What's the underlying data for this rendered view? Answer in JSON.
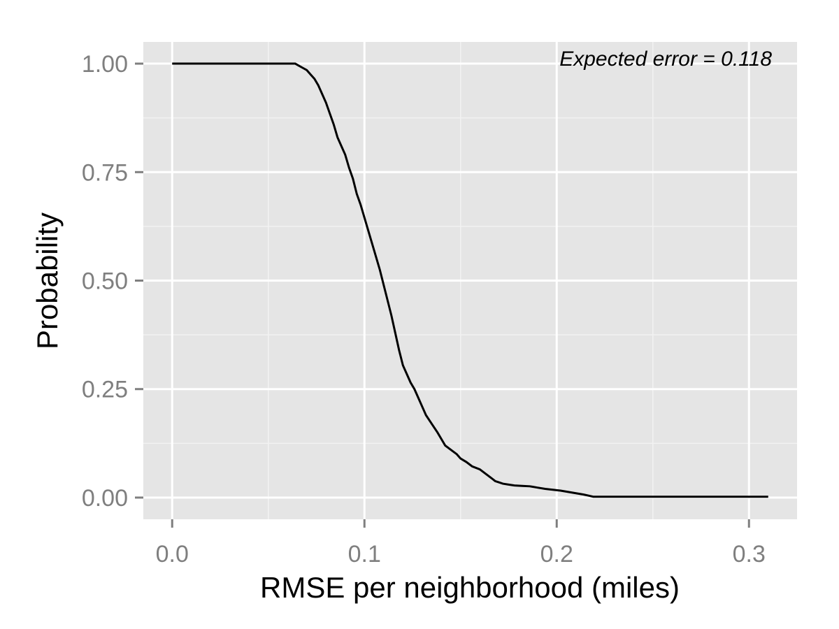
{
  "chart_data": {
    "type": "line",
    "xlabel": "RMSE per neighborhood (miles)",
    "ylabel": "Probability",
    "xlim": [
      -0.015,
      0.325
    ],
    "ylim": [
      -0.05,
      1.05
    ],
    "x_ticks": [
      0.0,
      0.1,
      0.2,
      0.3
    ],
    "x_tick_labels": [
      "0.0",
      "0.1",
      "0.2",
      "0.3"
    ],
    "y_ticks": [
      0.0,
      0.25,
      0.5,
      0.75,
      1.0
    ],
    "y_tick_labels": [
      "0.00",
      "0.25",
      "0.50",
      "0.75",
      "1.00"
    ],
    "grid": true,
    "annotation": "Expected error = 0.118",
    "annotation_position": "top-right",
    "colors": {
      "panel_bg": "#e5e5e5",
      "grid_major": "#ffffff",
      "grid_minor": "#f2f2f2",
      "line": "#000000",
      "tick_label": "#7f7f7f"
    },
    "series": [
      {
        "x": [
          0.0,
          0.064,
          0.066,
          0.068,
          0.07,
          0.072,
          0.074,
          0.076,
          0.078,
          0.08,
          0.082,
          0.084,
          0.086,
          0.088,
          0.09,
          0.092,
          0.094,
          0.096,
          0.098,
          0.1,
          0.102,
          0.104,
          0.106,
          0.108,
          0.11,
          0.112,
          0.114,
          0.116,
          0.118,
          0.12,
          0.122,
          0.124,
          0.126,
          0.128,
          0.13,
          0.132,
          0.135,
          0.138,
          0.14,
          0.142,
          0.145,
          0.148,
          0.15,
          0.153,
          0.156,
          0.16,
          0.163,
          0.166,
          0.168,
          0.17,
          0.172,
          0.175,
          0.178,
          0.182,
          0.186,
          0.19,
          0.194,
          0.198,
          0.202,
          0.206,
          0.21,
          0.214,
          0.217,
          0.219,
          0.23,
          0.26,
          0.29,
          0.31
        ],
        "y": [
          1.0,
          1.0,
          0.995,
          0.99,
          0.985,
          0.975,
          0.965,
          0.95,
          0.93,
          0.91,
          0.885,
          0.86,
          0.83,
          0.81,
          0.79,
          0.76,
          0.735,
          0.7,
          0.675,
          0.645,
          0.615,
          0.585,
          0.555,
          0.525,
          0.49,
          0.455,
          0.42,
          0.38,
          0.34,
          0.305,
          0.285,
          0.265,
          0.25,
          0.23,
          0.21,
          0.19,
          0.17,
          0.15,
          0.135,
          0.12,
          0.11,
          0.1,
          0.09,
          0.082,
          0.072,
          0.065,
          0.055,
          0.045,
          0.038,
          0.035,
          0.032,
          0.03,
          0.028,
          0.027,
          0.026,
          0.023,
          0.02,
          0.018,
          0.016,
          0.013,
          0.01,
          0.007,
          0.004,
          0.002,
          0.002,
          0.002,
          0.002,
          0.002
        ]
      }
    ]
  }
}
